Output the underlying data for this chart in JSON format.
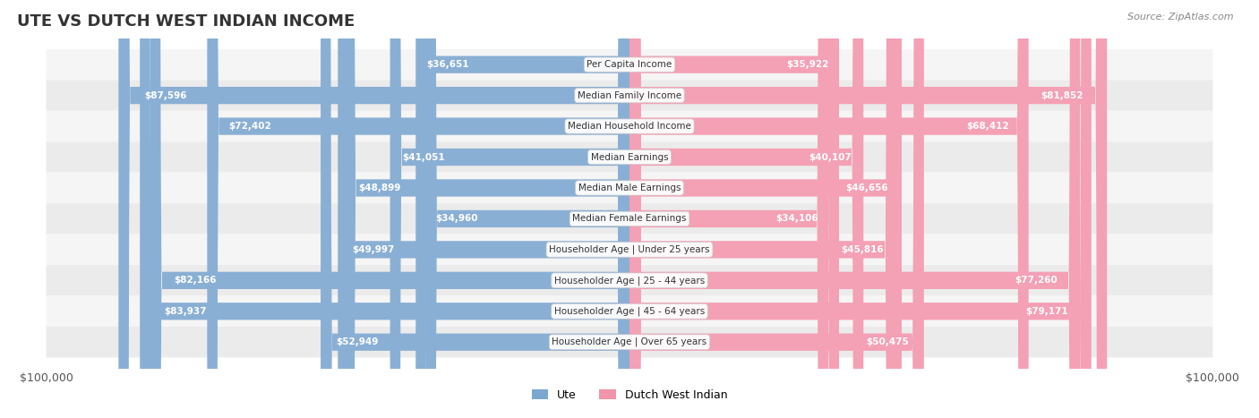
{
  "title": "UTE VS DUTCH WEST INDIAN INCOME",
  "source": "Source: ZipAtlas.com",
  "max_value": 100000,
  "blue_color": "#8aafd4",
  "pink_color": "#f4a0b5",
  "dark_blue_color": "#5b8dc0",
  "dark_pink_color": "#e8648a",
  "bg_row_light": "#f2f2f2",
  "bg_row_white": "#ffffff",
  "legend_blue": "#7ba7d1",
  "legend_pink": "#f093ab",
  "categories": [
    "Per Capita Income",
    "Median Family Income",
    "Median Household Income",
    "Median Earnings",
    "Median Male Earnings",
    "Median Female Earnings",
    "Householder Age | Under 25 years",
    "Householder Age | 25 - 44 years",
    "Householder Age | 45 - 64 years",
    "Householder Age | Over 65 years"
  ],
  "ute_values": [
    36651,
    87596,
    72402,
    41051,
    48899,
    34960,
    49997,
    82166,
    83937,
    52949
  ],
  "dwi_values": [
    35922,
    81852,
    68412,
    40107,
    46656,
    34106,
    45816,
    77260,
    79171,
    50475
  ],
  "ute_labels": [
    "$36,651",
    "$87,596",
    "$72,402",
    "$41,051",
    "$48,899",
    "$34,960",
    "$49,997",
    "$82,166",
    "$83,937",
    "$52,949"
  ],
  "dwi_labels": [
    "$35,922",
    "$81,852",
    "$68,412",
    "$40,107",
    "$46,656",
    "$34,106",
    "$45,816",
    "$77,260",
    "$79,171",
    "$50,475"
  ]
}
